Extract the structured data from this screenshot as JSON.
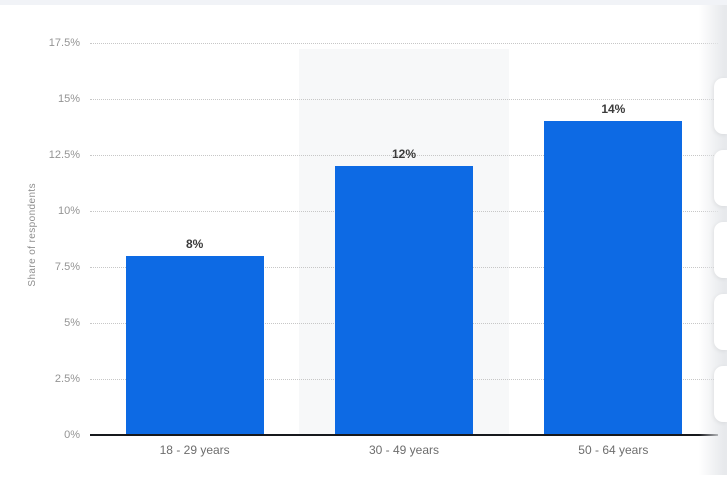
{
  "page": {
    "top_strip_color": "#f1f3f7"
  },
  "chart_data": {
    "type": "bar",
    "title": "",
    "categories": [
      "18 - 29 years",
      "30 - 49 years",
      "50 - 64 years"
    ],
    "values": [
      8,
      12,
      14
    ],
    "value_labels": [
      "8%",
      "12%",
      "14%"
    ],
    "xlabel": "",
    "ylabel": "Share of respondents",
    "ylim": [
      0,
      17.5
    ],
    "yticks": [
      0,
      2.5,
      5,
      7.5,
      10,
      12.5,
      15,
      17.5
    ],
    "ytick_labels": [
      "0%",
      "2.5%",
      "5%",
      "7.5%",
      "10%",
      "12.5%",
      "15%",
      "17.5%"
    ],
    "grid": true,
    "legend": false,
    "bar_color": "#0d6ae4",
    "highlighted_category_index": 1,
    "highlight_band_color": "#f7f8f9",
    "axis_line_color": "#17191d",
    "gridline_color": "#c7c7c7"
  },
  "side_toolbar": {
    "button_count": 5
  }
}
